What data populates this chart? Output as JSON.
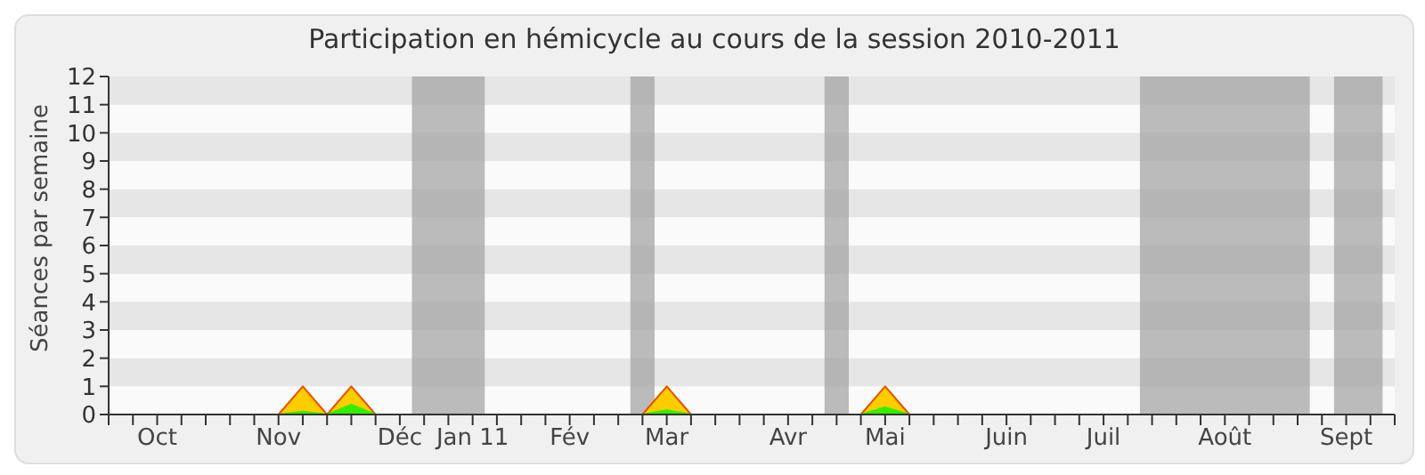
{
  "chart_data": {
    "type": "area",
    "title": "Participation en hémicycle au cours de la session 2010-2011",
    "ylabel": "Séances par semaine",
    "categories": [
      null,
      null,
      "Oct",
      null,
      null,
      null,
      null,
      "Nov",
      null,
      null,
      null,
      null,
      "Déc",
      null,
      null,
      "Jan 11",
      null,
      null,
      null,
      "Fév",
      null,
      null,
      null,
      "Mar",
      null,
      null,
      null,
      null,
      "Avr",
      null,
      null,
      null,
      "Mai",
      null,
      null,
      null,
      null,
      "Juin",
      null,
      null,
      null,
      "Juil",
      null,
      null,
      null,
      null,
      "Août",
      null,
      null,
      null,
      null,
      "Sept",
      null,
      null
    ],
    "series": [
      {
        "color": "#ffcc00",
        "values": [
          0,
          0,
          0,
          0,
          0,
          0,
          0,
          0,
          1,
          0,
          1,
          0,
          0,
          0,
          0,
          0,
          0,
          0,
          0,
          0,
          0,
          0,
          0,
          1,
          0,
          0,
          0,
          0,
          0,
          0,
          0,
          0,
          1,
          0,
          0,
          0,
          0,
          0,
          0,
          0,
          0,
          0,
          0,
          0,
          0,
          0,
          0,
          0,
          0,
          0,
          0,
          0,
          0,
          0
        ]
      },
      {
        "color": "#33ee00",
        "values": [
          0,
          0,
          0,
          0,
          0,
          0,
          0,
          0,
          0.1,
          0,
          0.35,
          0,
          0,
          0,
          0,
          0,
          0,
          0,
          0,
          0,
          0,
          0,
          0,
          0.15,
          0,
          0,
          0,
          0,
          0,
          0,
          0,
          0,
          0.25,
          0,
          0,
          0,
          0,
          0,
          0,
          0,
          0,
          0,
          0,
          0,
          0,
          0,
          0,
          0,
          0,
          0,
          0,
          0,
          0,
          0
        ]
      }
    ],
    "ylim": [
      0,
      12
    ],
    "yticks": [
      0,
      1,
      2,
      3,
      4,
      5,
      6,
      7,
      8,
      9,
      10,
      11,
      12
    ],
    "legend": false
  }
}
